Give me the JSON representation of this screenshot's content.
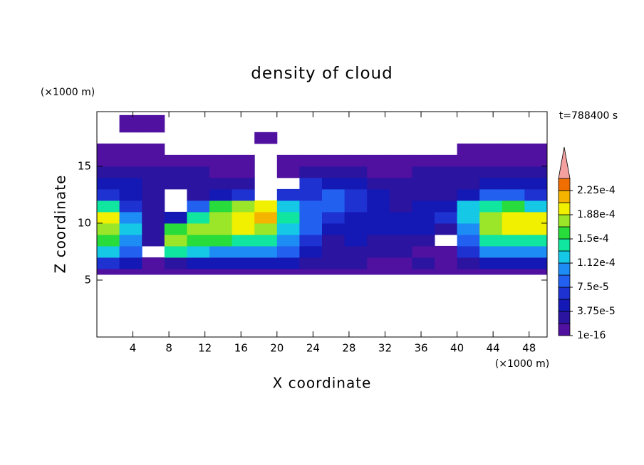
{
  "chart_data": {
    "type": "contour",
    "title": "density of cloud",
    "xlabel": "X coordinate",
    "ylabel": "Z coordinate",
    "xunit": "(×1000 m)",
    "yunit": "(×1000 m)",
    "time_label": "t=788400 s",
    "xlim": [
      0,
      50
    ],
    "ylim": [
      0,
      19.8
    ],
    "xticks": [
      4,
      8,
      12,
      16,
      20,
      24,
      28,
      32,
      36,
      40,
      44,
      48
    ],
    "yticks": [
      5,
      10,
      15
    ],
    "x_edges": [
      0,
      2.5,
      5,
      7.5,
      10,
      12.5,
      15,
      17.5,
      20,
      22.5,
      25,
      27.5,
      30,
      32.5,
      35,
      37.5,
      40,
      42.5,
      45,
      47.5,
      50
    ],
    "y_edges": [
      5.5,
      6,
      7,
      8,
      9,
      10,
      11,
      12,
      13,
      14,
      15,
      16,
      17,
      18,
      19.5
    ],
    "z": [
      [
        5e-06,
        5e-06,
        5e-06,
        5e-06,
        5e-06,
        5e-06,
        5e-06,
        5e-06,
        5e-06,
        5e-06,
        5e-06,
        5e-06,
        5e-06,
        5e-06,
        5e-06,
        5e-06,
        5e-06,
        5e-06,
        5e-06,
        5e-06
      ],
      [
        6.6e-05,
        4.7e-05,
        5e-06,
        2.8e-05,
        4.7e-05,
        4.7e-05,
        4.7e-05,
        4.7e-05,
        4.7e-05,
        2.8e-05,
        2.8e-05,
        2.8e-05,
        5e-06,
        5e-06,
        2.8e-05,
        5e-06,
        2.8e-05,
        4.7e-05,
        4.7e-05,
        4.7e-05
      ],
      [
        0.000122,
        8.4e-05,
        null,
        0.000141,
        0.000122,
        0.000103,
        0.000103,
        0.000103,
        8.4e-05,
        4.7e-05,
        2.8e-05,
        2.8e-05,
        2.8e-05,
        2.8e-05,
        5e-06,
        5e-06,
        6.6e-05,
        0.000103,
        0.000103,
        0.000103
      ],
      [
        0.000159,
        0.000103,
        2.8e-05,
        0.000178,
        0.000159,
        0.000159,
        0.000141,
        0.000141,
        0.000103,
        6.6e-05,
        2.8e-05,
        4.7e-05,
        2.8e-05,
        2.8e-05,
        2.8e-05,
        null,
        8.4e-05,
        0.000141,
        0.000141,
        0.000141
      ],
      [
        0.000178,
        0.000122,
        2.8e-05,
        0.000159,
        0.000178,
        0.000178,
        0.000197,
        0.000178,
        0.000122,
        8.4e-05,
        4.7e-05,
        4.7e-05,
        4.7e-05,
        4.7e-05,
        4.7e-05,
        2.8e-05,
        0.000103,
        0.000178,
        0.000197,
        0.000197
      ],
      [
        0.000197,
        0.000103,
        2.8e-05,
        4.7e-05,
        0.000141,
        0.000178,
        0.000197,
        0.000216,
        0.000141,
        8.4e-05,
        6.6e-05,
        4.7e-05,
        4.7e-05,
        4.7e-05,
        4.7e-05,
        6.6e-05,
        0.000122,
        0.000178,
        0.000197,
        0.000197
      ],
      [
        0.000141,
        6.6e-05,
        2.8e-05,
        null,
        8.4e-05,
        0.000159,
        0.000178,
        0.000197,
        0.000122,
        8.4e-05,
        8.4e-05,
        6.6e-05,
        4.7e-05,
        2.8e-05,
        4.7e-05,
        4.7e-05,
        0.000122,
        0.000141,
        0.000159,
        0.000122
      ],
      [
        6.6e-05,
        4.7e-05,
        2.8e-05,
        null,
        2.8e-05,
        4.7e-05,
        6.6e-05,
        null,
        6.6e-05,
        6.6e-05,
        8.4e-05,
        6.6e-05,
        4.7e-05,
        2.8e-05,
        2.8e-05,
        2.8e-05,
        4.7e-05,
        8.4e-05,
        8.4e-05,
        6.6e-05
      ],
      [
        4.7e-05,
        4.7e-05,
        2.8e-05,
        2.8e-05,
        2.8e-05,
        2.8e-05,
        2.8e-05,
        null,
        null,
        6.6e-05,
        4.7e-05,
        4.7e-05,
        2.8e-05,
        2.8e-05,
        2.8e-05,
        2.8e-05,
        2.8e-05,
        4.7e-05,
        4.7e-05,
        4.7e-05
      ],
      [
        2.8e-05,
        2.8e-05,
        2.8e-05,
        2.8e-05,
        2.8e-05,
        5e-06,
        5e-06,
        null,
        5e-06,
        2.8e-05,
        2.8e-05,
        2.8e-05,
        5e-06,
        5e-06,
        2.8e-05,
        2.8e-05,
        2.8e-05,
        2.8e-05,
        2.8e-05,
        2.8e-05
      ],
      [
        5e-06,
        5e-06,
        5e-06,
        5e-06,
        5e-06,
        5e-06,
        5e-06,
        null,
        5e-06,
        5e-06,
        5e-06,
        5e-06,
        5e-06,
        5e-06,
        5e-06,
        5e-06,
        5e-06,
        5e-06,
        5e-06,
        5e-06
      ],
      [
        5e-06,
        5e-06,
        5e-06,
        null,
        null,
        null,
        null,
        null,
        null,
        null,
        null,
        null,
        null,
        null,
        null,
        null,
        5e-06,
        5e-06,
        5e-06,
        5e-06
      ],
      [
        null,
        null,
        null,
        null,
        null,
        null,
        null,
        5e-06,
        null,
        null,
        null,
        null,
        null,
        null,
        null,
        null,
        null,
        null,
        null,
        null
      ],
      [
        null,
        5e-06,
        5e-06,
        null,
        null,
        null,
        null,
        null,
        null,
        null,
        null,
        null,
        null,
        null,
        null,
        null,
        null,
        null,
        null,
        null
      ]
    ],
    "levels": [
      1e-16,
      1.875e-05,
      3.75e-05,
      5.625e-05,
      7.5e-05,
      9.375e-05,
      0.0001125,
      0.00013125,
      0.00015,
      0.00016875,
      0.0001875,
      0.00020625,
      0.000225,
      0.00024375
    ],
    "colors": [
      "#5010a0",
      "#2a14a0",
      "#1418b4",
      "#1e32d2",
      "#2260f0",
      "#1e8cf5",
      "#14c8e6",
      "#10e6a0",
      "#28dc3c",
      "#9be628",
      "#f0f000",
      "#f5b400",
      "#f06e00",
      "#f5a0a0"
    ],
    "colorbar_ticks": [
      {
        "value": 1e-16,
        "label": "1e-16"
      },
      {
        "value": 3.75e-05,
        "label": "3.75e-5"
      },
      {
        "value": 7.5e-05,
        "label": "7.5e-5"
      },
      {
        "value": 0.0001125,
        "label": "1.12e-4"
      },
      {
        "value": 0.00015,
        "label": "1.5e-4"
      },
      {
        "value": 0.0001875,
        "label": "1.88e-4"
      },
      {
        "value": 0.000225,
        "label": "2.25e-4"
      }
    ]
  }
}
